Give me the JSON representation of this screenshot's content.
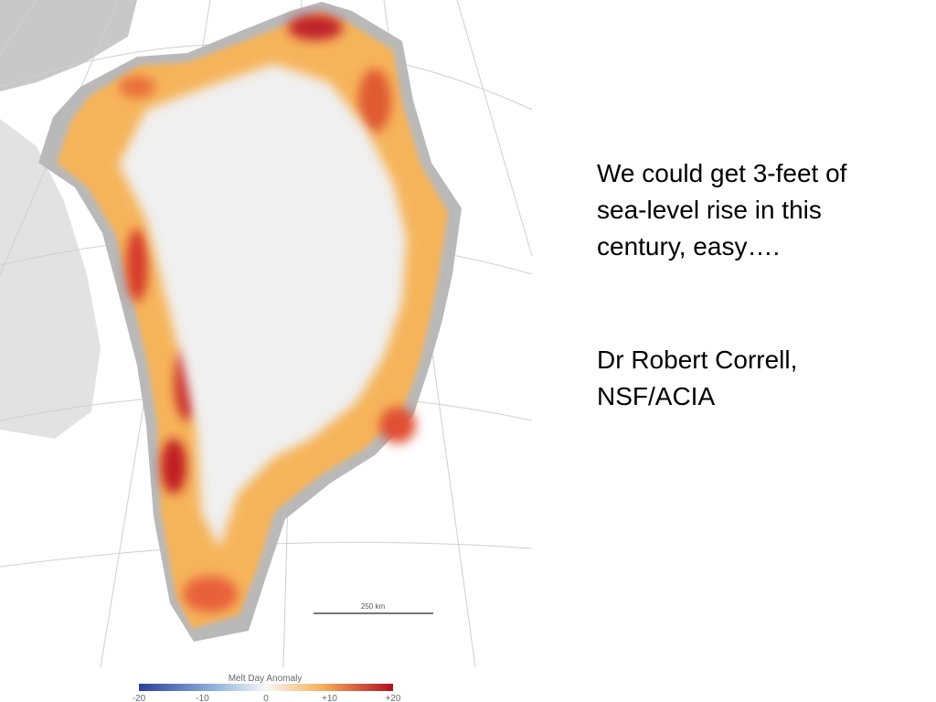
{
  "quote": {
    "lines": [
      "We could get 3-feet of",
      "sea-level rise in this",
      "century, easy…."
    ]
  },
  "attribution": {
    "lines": [
      "Dr Robert Correll,",
      "NSF/ACIA"
    ]
  },
  "map": {
    "scale_label": "250 km",
    "legend": {
      "title": "Melt Day Anomaly",
      "ticks": [
        "-20",
        "-10",
        "0",
        "+10",
        "+20"
      ]
    }
  }
}
